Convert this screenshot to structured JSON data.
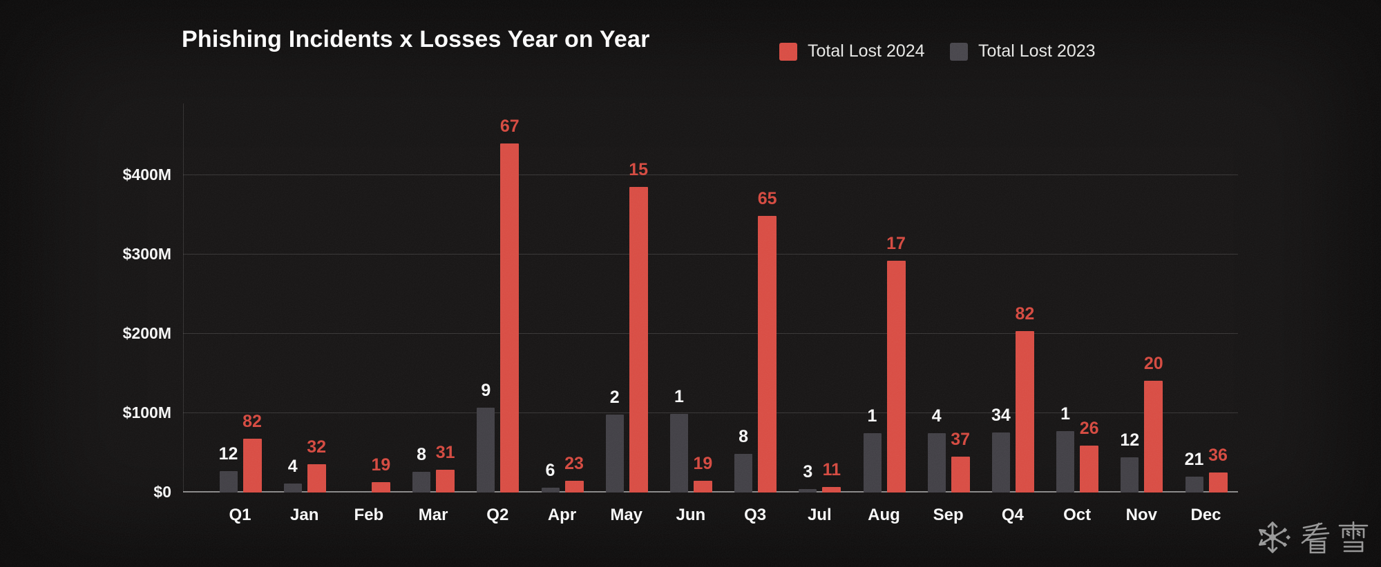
{
  "title": "Phishing Incidents x Losses Year on Year",
  "legend": {
    "items": [
      {
        "id": "2024",
        "label": "Total Lost 2024",
        "color": "#d84b42"
      },
      {
        "id": "2023",
        "label": "Total Lost 2023",
        "color": "#46444a"
      }
    ]
  },
  "watermark": {
    "icon": "snowflake",
    "text": "看雪"
  },
  "colors": {
    "background": "#151313",
    "bar_2024": "#d84b42",
    "bar_2023": "#403e44",
    "label_2024": "#d5483e",
    "label_2023": "#f6f6f6",
    "grid": "rgba(255,255,255,0.14)",
    "axis": "rgba(255,255,255,0.5)"
  },
  "chart_data": {
    "type": "bar",
    "title": "Phishing Incidents x Losses Year on Year",
    "categories": [
      "Q1",
      "Jan",
      "Feb",
      "Mar",
      "Q2",
      "Apr",
      "May",
      "Jun",
      "Q3",
      "Jul",
      "Aug",
      "Sep",
      "Q4",
      "Oct",
      "Nov",
      "Dec"
    ],
    "y_axis": {
      "ticks": [
        "$0",
        "$100M",
        "$200M",
        "$300M",
        "$400M"
      ],
      "tick_values": [
        0,
        100,
        200,
        300,
        400
      ],
      "ylim": [
        0,
        490
      ],
      "unit": "USD millions",
      "grid": true
    },
    "legend_position": "top-right",
    "series": [
      {
        "name": "Total Lost 2023",
        "color": "#403e44",
        "label_color": "#f6f6f6",
        "data_labels": [
          "12",
          "4",
          "",
          "8",
          "9",
          "6",
          "2",
          "1",
          "8",
          "3",
          "1",
          "4",
          "34",
          "1",
          "12",
          "21"
        ],
        "loss_usd_m": [
          27,
          11,
          0,
          26,
          107,
          6,
          98,
          99,
          49,
          4,
          75,
          75,
          76,
          77,
          44,
          20
        ]
      },
      {
        "name": "Total Lost 2024",
        "color": "#d84b42",
        "label_color": "#d5483e",
        "data_labels": [
          "82",
          "32",
          "19",
          "31",
          "67",
          "23",
          "15",
          "19",
          "65",
          "11",
          "17",
          "37",
          "82",
          "26",
          "20",
          "36"
        ],
        "loss_usd_m": [
          68,
          36,
          13,
          29,
          440,
          15,
          385,
          15,
          348,
          7,
          292,
          45,
          203,
          59,
          141,
          25
        ]
      }
    ]
  }
}
